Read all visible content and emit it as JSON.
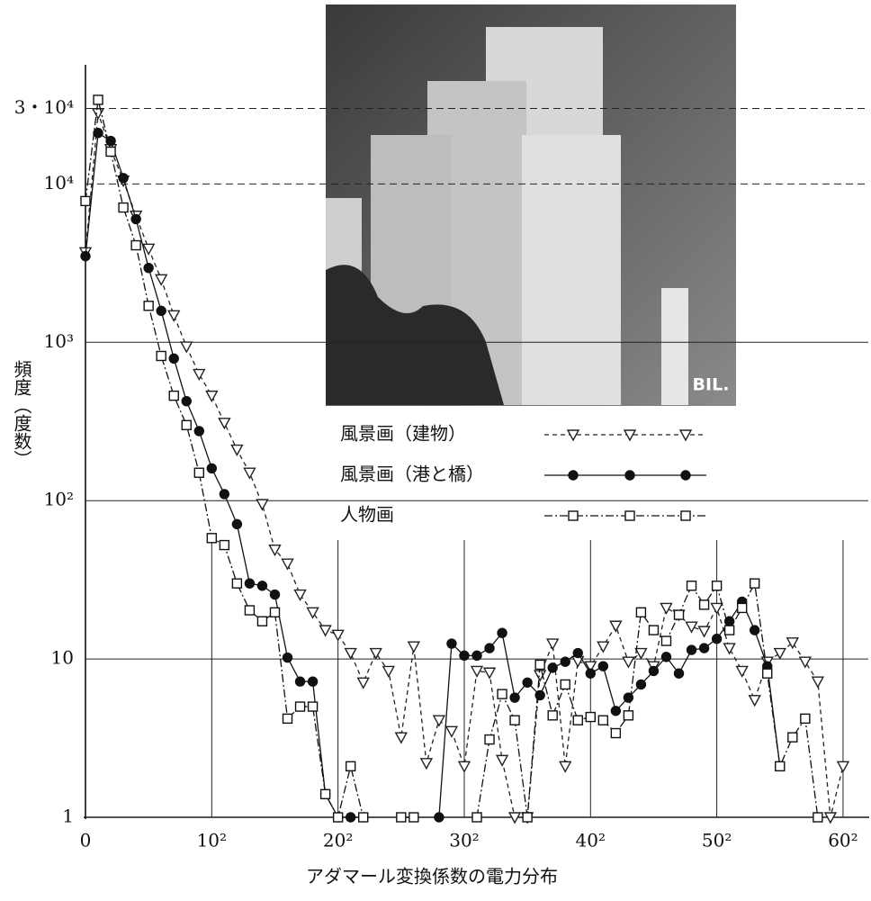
{
  "chart_data": {
    "type": "line",
    "x_label": "アダマール変換係数の電力分布",
    "y_label": "頻度（度数）",
    "inset_label": "BIL.",
    "log_y": true,
    "grid": true,
    "xlim": [
      0,
      62
    ],
    "ylim": [
      1,
      53000
    ],
    "xticks": [
      0,
      {
        "value": 10,
        "label": "10²"
      },
      {
        "value": 20,
        "label": "20²"
      },
      {
        "value": 30,
        "label": "30²"
      },
      {
        "value": 40,
        "label": "40²"
      },
      {
        "value": 50,
        "label": "50²"
      },
      {
        "value": 60,
        "label": "60²"
      }
    ],
    "yticks": [
      1,
      10,
      {
        "value": 100,
        "label": "10²"
      },
      {
        "value": 1000,
        "label": "10³"
      },
      {
        "value": 10000,
        "label": "10⁴"
      },
      {
        "value": 30000,
        "label": "3・10⁴"
      }
    ],
    "x": [
      0,
      1,
      2,
      3,
      4,
      5,
      6,
      7,
      8,
      9,
      10,
      11,
      12,
      13,
      14,
      15,
      16,
      17,
      18,
      19,
      20,
      21,
      22,
      23,
      24,
      25,
      26,
      27,
      28,
      29,
      30,
      31,
      32,
      33,
      34,
      35,
      36,
      37,
      38,
      39,
      40,
      41,
      42,
      43,
      44,
      45,
      46,
      47,
      48,
      49,
      50,
      51,
      52,
      53,
      54,
      55,
      56,
      57,
      58,
      59,
      60
    ],
    "series": [
      {
        "name": "風景画（建物）",
        "color": "#222",
        "marker": "triangle",
        "dash": "5 4",
        "values": [
          3700,
          28000,
          16600,
          10500,
          6300,
          3900,
          2500,
          1480,
          940,
          630,
          460,
          310,
          210,
          150,
          95,
          49,
          40,
          25.5,
          19.7,
          15.2,
          14.2,
          10.9,
          7.1,
          10.9,
          8.4,
          3.2,
          12,
          2.2,
          4.1,
          3.5,
          2.1,
          8.4,
          8.2,
          2.3,
          1,
          1,
          7.9,
          12.5,
          2.1,
          9.7,
          9,
          12,
          16.2,
          9.6,
          10.9,
          9,
          21,
          19,
          16,
          15,
          21,
          11.7,
          8.4,
          5.5,
          9.6,
          10.9,
          12.7,
          9.6,
          7.2,
          1,
          2.1
        ]
      },
      {
        "name": "風景画（港と橋）",
        "color": "#111",
        "marker": "circle",
        "dash": "",
        "values": [
          3500,
          21000,
          18700,
          10900,
          6000,
          2950,
          1580,
          790,
          425,
          275,
          160,
          110,
          71,
          30,
          29,
          25.5,
          10.2,
          7.2,
          7.2,
          1.4,
          1,
          1,
          1,
          null,
          null,
          null,
          null,
          null,
          1,
          12.5,
          10.5,
          10.5,
          11.7,
          14.6,
          5.7,
          7.1,
          5.9,
          8.8,
          9.6,
          10.9,
          8.1,
          9,
          4.7,
          5.7,
          6.9,
          8.4,
          10.3,
          8.1,
          11.4,
          11.7,
          13.4,
          17.3,
          23,
          15.2,
          9,
          2.1,
          null,
          null,
          null,
          null,
          null
        ]
      },
      {
        "name": "人物画",
        "color": "#111",
        "marker": "square",
        "dash": "9 3 2 3",
        "values": [
          7800,
          34000,
          16000,
          7100,
          4100,
          1700,
          820,
          460,
          300,
          150,
          58,
          52.4,
          30,
          20.3,
          17.3,
          19.7,
          4.2,
          5,
          5,
          1.4,
          1,
          2.1,
          1,
          null,
          null,
          1,
          1,
          null,
          null,
          null,
          null,
          1,
          3.1,
          6,
          4.1,
          1,
          9.2,
          4.4,
          6.9,
          4.1,
          4.3,
          4.1,
          3.4,
          4.4,
          19.7,
          15.2,
          13,
          19,
          29,
          22,
          29,
          15.2,
          21,
          30,
          8.1,
          2.1,
          3.2,
          4.2,
          1,
          null,
          null
        ]
      }
    ]
  }
}
